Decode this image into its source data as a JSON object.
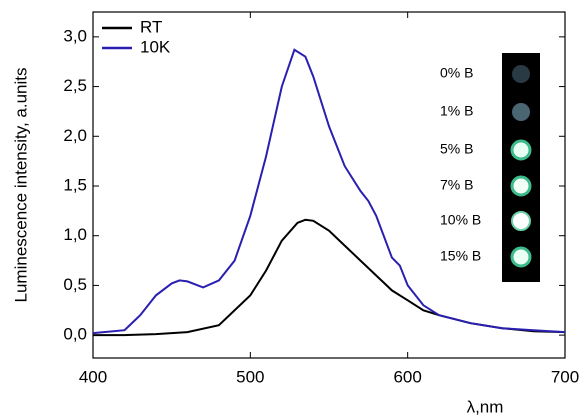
{
  "chart_data": {
    "type": "line",
    "xlabel": "λ,nm",
    "ylabel": "Luminescence intensity, a.units",
    "xlim": [
      400,
      700
    ],
    "xticks": [
      400,
      500,
      600,
      700
    ],
    "ylim": [
      -0.23,
      3.25
    ],
    "yticks": [
      {
        "value": 0,
        "label": "0,0"
      },
      {
        "value": 0.5,
        "label": "0,5"
      },
      {
        "value": 1,
        "label": "1,0"
      },
      {
        "value": 1.5,
        "label": "1,5"
      },
      {
        "value": 2,
        "label": "2,0"
      },
      {
        "value": 2.5,
        "label": "2,5"
      },
      {
        "value": 3,
        "label": "3,0"
      }
    ],
    "legend": "upper left",
    "series": [
      {
        "name": "RT",
        "color": "#000000",
        "x": [
          400,
          420,
          440,
          460,
          480,
          500,
          510,
          520,
          530,
          535,
          540,
          550,
          560,
          570,
          580,
          590,
          600,
          610,
          620,
          640,
          660,
          680,
          700
        ],
        "values": [
          0.0,
          0.0,
          0.01,
          0.03,
          0.1,
          0.4,
          0.65,
          0.95,
          1.13,
          1.16,
          1.15,
          1.05,
          0.9,
          0.75,
          0.6,
          0.45,
          0.35,
          0.25,
          0.2,
          0.12,
          0.07,
          0.04,
          0.03
        ]
      },
      {
        "name": "10K",
        "color": "#2a1fb0",
        "x": [
          400,
          420,
          430,
          440,
          450,
          455,
          460,
          470,
          480,
          490,
          500,
          510,
          520,
          528,
          535,
          540,
          550,
          560,
          570,
          575,
          580,
          590,
          595,
          600,
          610,
          620,
          640,
          660,
          680,
          700
        ],
        "values": [
          0.02,
          0.05,
          0.2,
          0.4,
          0.52,
          0.55,
          0.54,
          0.48,
          0.55,
          0.75,
          1.2,
          1.8,
          2.5,
          2.87,
          2.8,
          2.6,
          2.1,
          1.7,
          1.45,
          1.35,
          1.2,
          0.78,
          0.7,
          0.5,
          0.3,
          0.2,
          0.12,
          0.07,
          0.05,
          0.03
        ]
      }
    ],
    "inset_labels": [
      "0% B",
      "1% B",
      "5% B",
      "7% B",
      "10% B",
      "15% B"
    ]
  }
}
